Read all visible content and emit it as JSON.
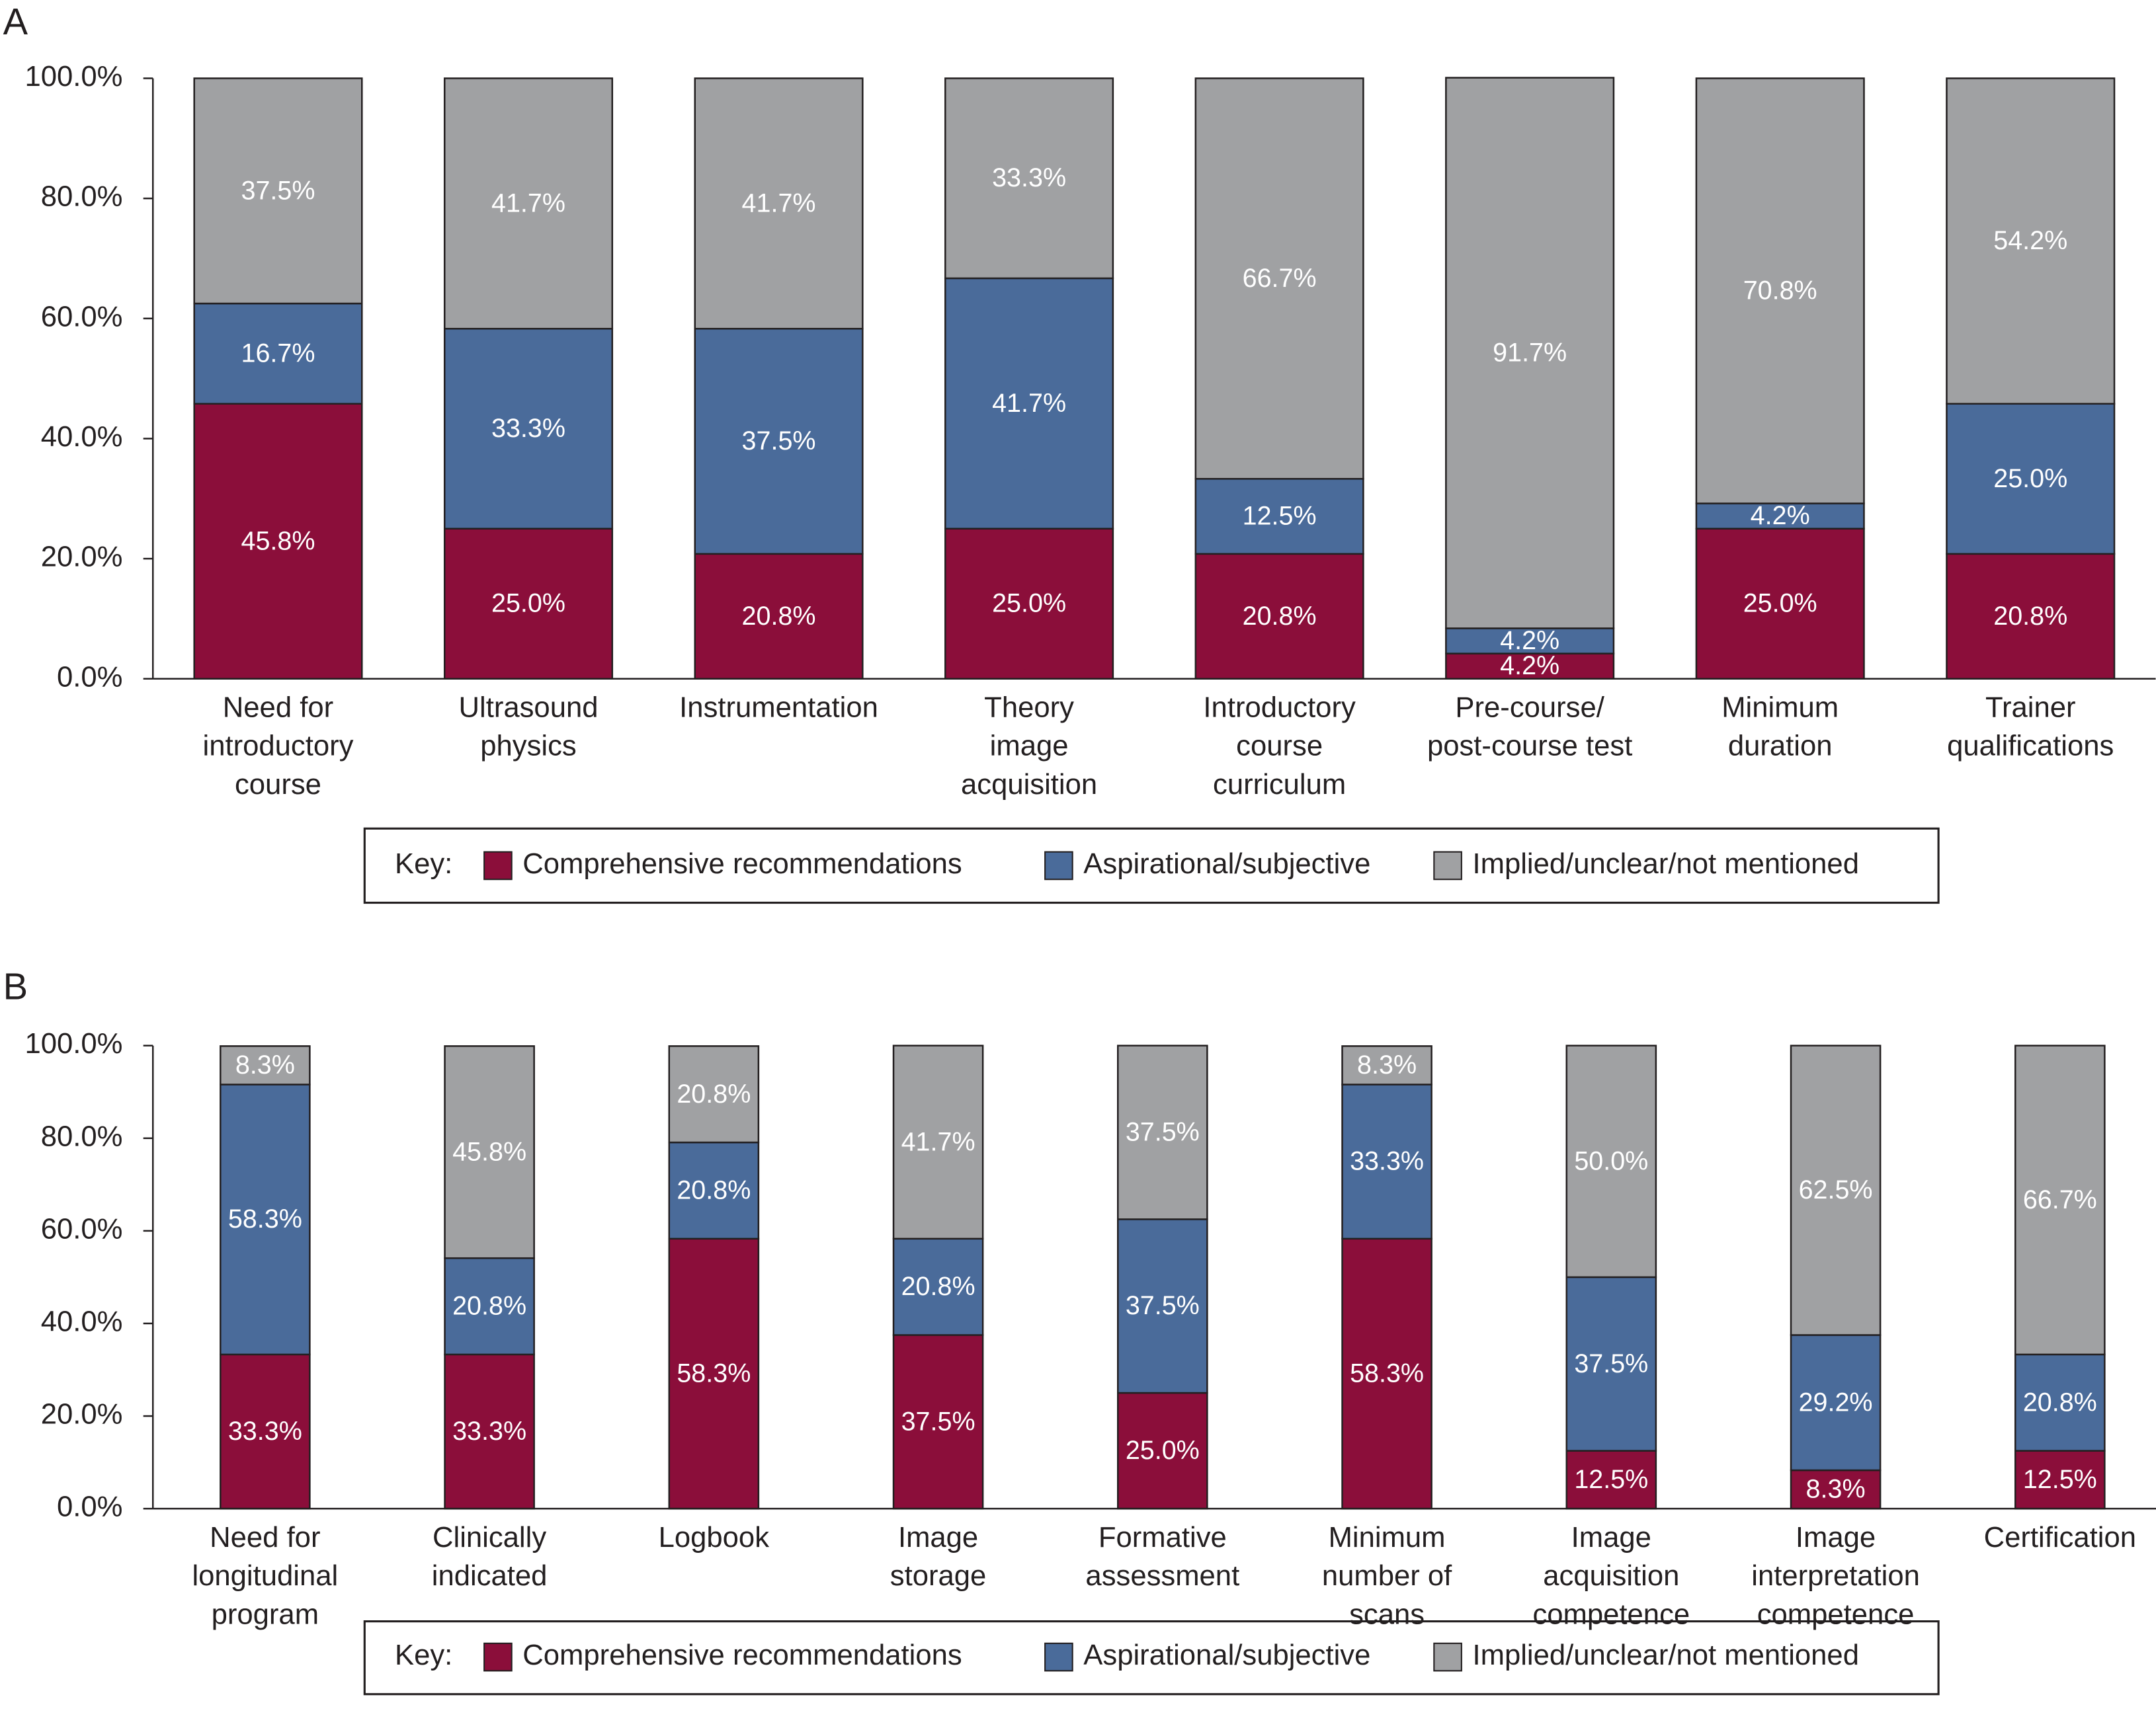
{
  "chart_data": [
    {
      "type": "bar",
      "stacked": true,
      "panel": "A",
      "legend_title": "Key:",
      "categories": [
        "Need for\nintroductory\ncourse",
        "Ultrasound\nphysics",
        "Instrumentation",
        "Theory\nimage\nacquisition",
        "Introductory\ncourse\ncurriculum",
        "Pre-course/\npost-course test",
        "Minimum\nduration",
        "Trainer\nqualifications"
      ],
      "series": [
        {
          "name": "Comprehensive recommendations",
          "color": "#8b0e3a",
          "values": [
            45.8,
            25.0,
            20.8,
            25.0,
            20.8,
            4.2,
            25.0,
            20.8
          ],
          "value_labels": [
            "45.8%",
            "25.0%",
            "20.8%",
            "25.0%",
            "20.8%",
            "4.2%",
            "25.0%",
            "20.8%"
          ]
        },
        {
          "name": "Aspirational/subjective",
          "color": "#4a6b9a",
          "values": [
            16.7,
            33.3,
            37.5,
            41.7,
            12.5,
            4.2,
            4.2,
            25.0
          ],
          "value_labels": [
            "16.7%",
            "33.3%",
            "37.5%",
            "41.7%",
            "12.5%",
            "4.2%",
            "4.2%",
            "25.0%"
          ]
        },
        {
          "name": "Implied/unclear/not mentioned",
          "color": "#a0a1a3",
          "values": [
            37.5,
            41.7,
            41.7,
            33.3,
            66.7,
            91.7,
            70.8,
            54.2
          ],
          "value_labels": [
            "37.5%",
            "41.7%",
            "41.7%",
            "33.3%",
            "66.7%",
            "91.7%",
            "70.8%",
            "54.2%"
          ]
        }
      ],
      "ylim": [
        0,
        100
      ],
      "yticks": [
        {
          "value": 0,
          "label": "0.0%"
        },
        {
          "value": 20,
          "label": "20.0%"
        },
        {
          "value": 40,
          "label": "40.0%"
        },
        {
          "value": 60,
          "label": "60.0%"
        },
        {
          "value": 80,
          "label": "80.0%"
        },
        {
          "value": 100,
          "label": "100.0%"
        }
      ]
    },
    {
      "type": "bar",
      "stacked": true,
      "panel": "B",
      "legend_title": "Key:",
      "categories": [
        "Need for\nlongitudinal\nprogram",
        "Clinically\nindicated",
        "Logbook",
        "Image\nstorage",
        "Formative\nassessment",
        "Minimum\nnumber of\nscans",
        "Image\nacquisition\ncompetence",
        "Image\ninterpretation\ncompetence",
        "Certification"
      ],
      "series": [
        {
          "name": "Comprehensive recommendations",
          "color": "#8b0e3a",
          "values": [
            33.3,
            33.3,
            58.3,
            37.5,
            25.0,
            58.3,
            12.5,
            8.3,
            12.5
          ],
          "value_labels": [
            "33.3%",
            "33.3%",
            "58.3%",
            "37.5%",
            "25.0%",
            "58.3%",
            "12.5%",
            "8.3%",
            "12.5%"
          ]
        },
        {
          "name": "Aspirational/subjective",
          "color": "#4a6b9a",
          "values": [
            58.3,
            20.8,
            20.8,
            20.8,
            37.5,
            33.3,
            37.5,
            29.2,
            20.8
          ],
          "value_labels": [
            "58.3%",
            "20.8%",
            "20.8%",
            "20.8%",
            "37.5%",
            "33.3%",
            "37.5%",
            "29.2%",
            "20.8%"
          ]
        },
        {
          "name": "Implied/unclear/not mentioned",
          "color": "#a0a1a3",
          "values": [
            8.3,
            45.8,
            20.8,
            41.7,
            37.5,
            8.3,
            50.0,
            62.5,
            66.7
          ],
          "value_labels": [
            "8.3%",
            "45.8%",
            "20.8%",
            "41.7%",
            "37.5%",
            "8.3%",
            "50.0%",
            "62.5%",
            "66.7%"
          ]
        }
      ],
      "ylim": [
        0,
        100
      ],
      "yticks": [
        {
          "value": 0,
          "label": "0.0%"
        },
        {
          "value": 20,
          "label": "20.0%"
        },
        {
          "value": 40,
          "label": "40.0%"
        },
        {
          "value": 60,
          "label": "60.0%"
        },
        {
          "value": 80,
          "label": "80.0%"
        },
        {
          "value": 100,
          "label": "100.0%"
        }
      ]
    }
  ]
}
